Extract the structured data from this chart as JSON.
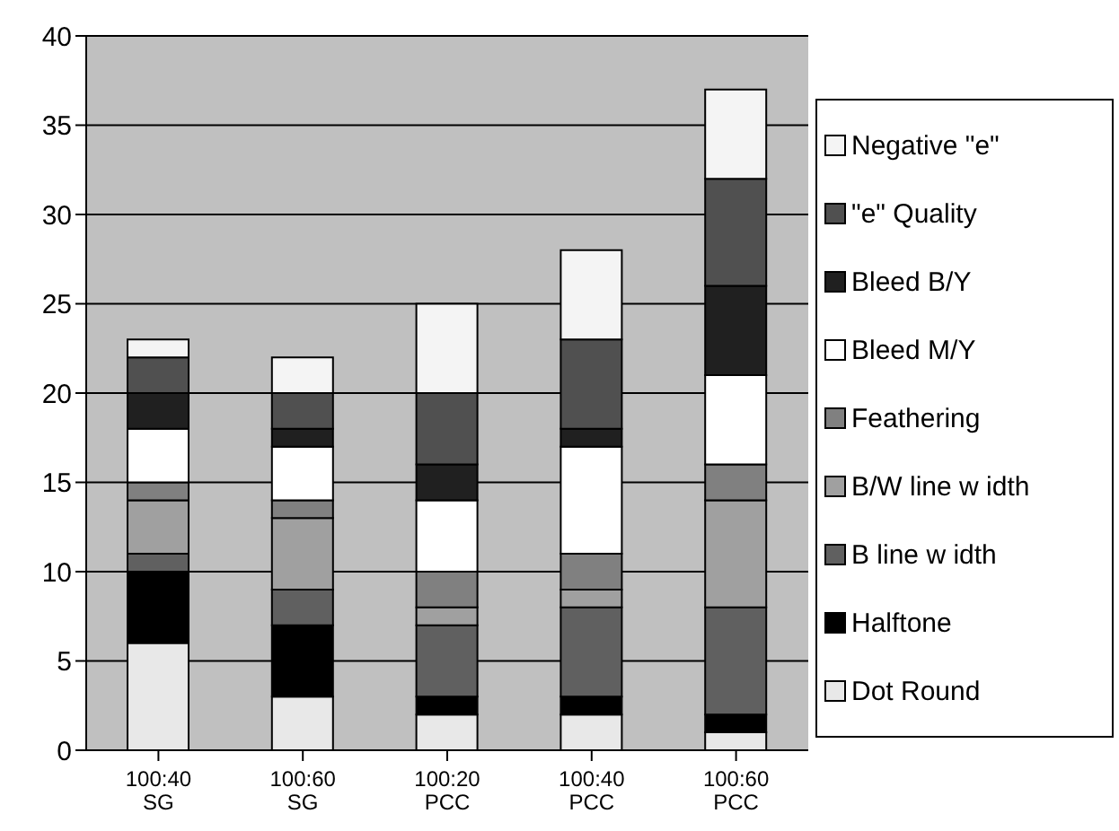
{
  "chart_data": {
    "type": "bar",
    "stacked": true,
    "categories": [
      "100:40 SG",
      "100:60 SG",
      "100:20 PCC",
      "100:40 PCC",
      "100:60 PCC"
    ],
    "series": [
      {
        "name": "Dot Round",
        "color": "#e8e8e8",
        "values": [
          6,
          3,
          2,
          2,
          1
        ]
      },
      {
        "name": "Halftone",
        "color": "#000000",
        "values": [
          4,
          4,
          1,
          1,
          1
        ]
      },
      {
        "name": "B line w idth",
        "color": "#606060",
        "values": [
          1,
          2,
          4,
          5,
          6
        ]
      },
      {
        "name": "B/W line w idth",
        "color": "#a0a0a0",
        "values": [
          3,
          4,
          1,
          1,
          6
        ]
      },
      {
        "name": "Feathering",
        "color": "#808080",
        "values": [
          1,
          1,
          2,
          2,
          2
        ]
      },
      {
        "name": "Bleed M/Y",
        "color": "#ffffff",
        "values": [
          3,
          3,
          4,
          6,
          5
        ]
      },
      {
        "name": "Bleed B/Y",
        "color": "#202020",
        "values": [
          2,
          1,
          2,
          1,
          5
        ]
      },
      {
        "name": "\"e\" Quality",
        "color": "#505050",
        "values": [
          2,
          2,
          4,
          5,
          6
        ]
      },
      {
        "name": "Negative \"e\"",
        "color": "#f4f4f4",
        "values": [
          1,
          2,
          5,
          5,
          5
        ]
      }
    ],
    "ylim": [
      0,
      40
    ],
    "yticks": [
      0,
      5,
      10,
      15,
      20,
      25,
      30,
      35,
      40
    ],
    "grid": "y",
    "legend": "right"
  }
}
